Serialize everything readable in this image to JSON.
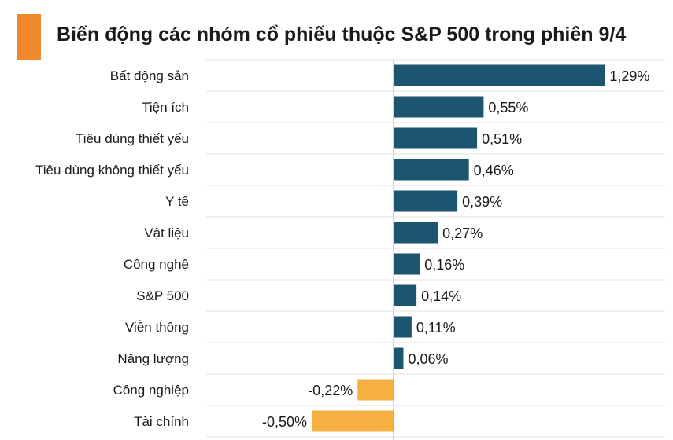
{
  "title": "Biến động các nhóm cổ phiếu thuộc S&P 500 trong phiên 9/4",
  "colors": {
    "accent": "#f0892e",
    "positive": "#1d5571",
    "negative": "#f5b041",
    "grid": "#e3e3e3",
    "zero_line": "#aaaaaa"
  },
  "chart_data": {
    "type": "bar",
    "orientation": "horizontal",
    "categories": [
      "Bất động sản",
      "Tiện ích",
      "Tiêu dùng thiết yếu",
      "Tiêu dùng không thiết yếu",
      "Y tế",
      "Vật liệu",
      "Công nghệ",
      "S&P 500",
      "Viễn thông",
      "Năng lượng",
      "Công nghiệp",
      "Tài chính"
    ],
    "values": [
      1.29,
      0.55,
      0.51,
      0.46,
      0.39,
      0.27,
      0.16,
      0.14,
      0.11,
      0.06,
      -0.22,
      -0.5
    ],
    "value_labels": [
      "1,29%",
      "0,55%",
      "0,51%",
      "0,46%",
      "0,39%",
      "0,27%",
      "0,16%",
      "0,14%",
      "0,11%",
      "0,06%",
      "-0,22%",
      "-0,50%"
    ],
    "unit": "%",
    "grid": true,
    "legend": false
  }
}
